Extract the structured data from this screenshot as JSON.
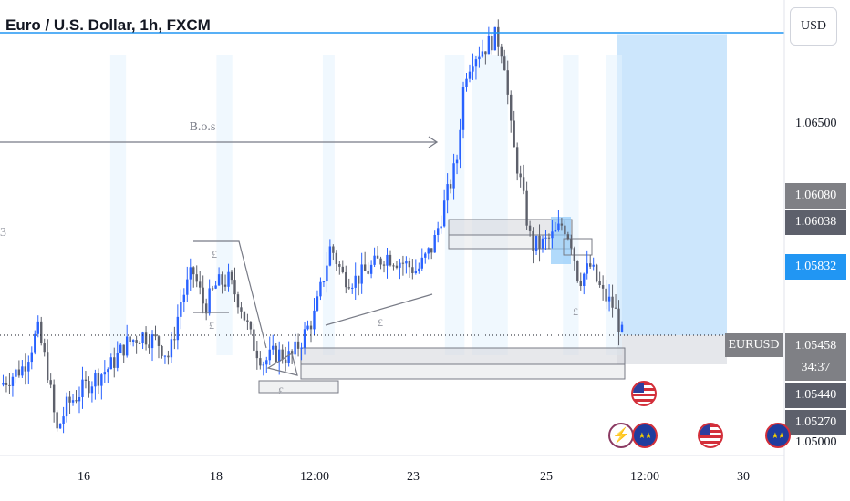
{
  "header": {
    "title": "Euro / U.S. Dollar, 1h, FXCM"
  },
  "currency_button": {
    "label": "USD"
  },
  "symbol_tag": {
    "label": "EURUSD"
  },
  "price_axis": {
    "plain_labels": [
      "1.06500",
      "1.05000"
    ],
    "tags": [
      {
        "value": "1.06080",
        "color": "#7f8085"
      },
      {
        "value": "1.06038",
        "color": "#5d606b"
      },
      {
        "value": "1.05832",
        "color": "#2196f3"
      },
      {
        "value": "1.05458",
        "color": "#7f8085"
      },
      {
        "value": "34:37",
        "color": "#7f8085"
      },
      {
        "value": "1.05440",
        "color": "#5d606b"
      },
      {
        "value": "1.05270",
        "color": "#5d606b"
      }
    ]
  },
  "time_axis": {
    "labels": [
      "16",
      "18",
      "12:00",
      "23",
      "25",
      "12:00",
      "30"
    ]
  },
  "annotations": {
    "bos_label": "B.o.s",
    "left_cut_label": "3",
    "pound_marker": "£"
  },
  "events": [
    {
      "type": "us",
      "icon": "us-flag-icon"
    },
    {
      "type": "lightning",
      "icon": "lightning-icon"
    },
    {
      "type": "eu",
      "icon": "eu-flag-icon"
    },
    {
      "type": "us",
      "icon": "us-flag-icon"
    },
    {
      "type": "eu",
      "icon": "eu-flag-icon"
    }
  ],
  "colors": {
    "up": "#2962ff",
    "down": "#5d606b",
    "accent": "#2196f3",
    "target_zone": "#bbdefb",
    "grid": "#e0e3eb"
  },
  "chart_data": {
    "type": "candlestick",
    "symbol": "EURUSD",
    "timeframe": "1h",
    "source": "FXCM",
    "x_ticks": [
      "16",
      "18",
      "12:00",
      "23",
      "25",
      "12:00",
      "30"
    ],
    "y_ticks": [
      1.065,
      1.05
    ],
    "ylim": [
      1.0495,
      1.0683
    ],
    "last_price": 1.05458,
    "key_levels": [
      1.0608,
      1.06038,
      1.05832,
      1.05458,
      1.0544,
      1.0527
    ],
    "close_path": [
      [
        0,
        1.0524
      ],
      [
        0.03,
        1.0532
      ],
      [
        0.048,
        1.0548
      ],
      [
        0.06,
        1.0531
      ],
      [
        0.072,
        1.0503
      ],
      [
        0.085,
        1.0515
      ],
      [
        0.11,
        1.0524
      ],
      [
        0.14,
        1.0532
      ],
      [
        0.16,
        1.0542
      ],
      [
        0.18,
        1.0546
      ],
      [
        0.2,
        1.0543
      ],
      [
        0.215,
        1.0536
      ],
      [
        0.23,
        1.0561
      ],
      [
        0.245,
        1.0574
      ],
      [
        0.26,
        1.0558
      ],
      [
        0.275,
        1.0568
      ],
      [
        0.29,
        1.057
      ],
      [
        0.305,
        1.056
      ],
      [
        0.32,
        1.0543
      ],
      [
        0.335,
        1.0534
      ],
      [
        0.35,
        1.0538
      ],
      [
        0.37,
        1.0536
      ],
      [
        0.385,
        1.0545
      ],
      [
        0.4,
        1.0555
      ],
      [
        0.41,
        1.057
      ],
      [
        0.42,
        1.0585
      ],
      [
        0.435,
        1.0572
      ],
      [
        0.45,
        1.057
      ],
      [
        0.47,
        1.0575
      ],
      [
        0.49,
        1.0581
      ],
      [
        0.51,
        1.0578
      ],
      [
        0.53,
        1.0574
      ],
      [
        0.55,
        1.0585
      ],
      [
        0.565,
        1.0604
      ],
      [
        0.58,
        1.0622
      ],
      [
        0.59,
        1.066
      ],
      [
        0.6,
        1.0668
      ],
      [
        0.615,
        1.0672
      ],
      [
        0.63,
        1.0677
      ],
      [
        0.64,
        1.0669
      ],
      [
        0.65,
        1.0632
      ],
      [
        0.66,
        1.0615
      ],
      [
        0.675,
        1.0585
      ],
      [
        0.69,
        1.0586
      ],
      [
        0.705,
        1.059
      ],
      [
        0.715,
        1.0595
      ],
      [
        0.725,
        1.0588
      ],
      [
        0.735,
        1.057
      ],
      [
        0.75,
        1.0576
      ],
      [
        0.765,
        1.0564
      ],
      [
        0.78,
        1.0558
      ],
      [
        0.79,
        1.0546
      ]
    ]
  }
}
